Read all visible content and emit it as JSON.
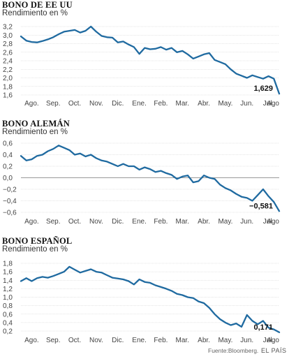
{
  "colors": {
    "line": "#1f6aa0",
    "grid": "#cccccc",
    "zero": "#999999"
  },
  "months": [
    "Ago.",
    "Sep.",
    "Oct.",
    "Nov.",
    "Dic.",
    "Ene.",
    "Feb.",
    "Mar.",
    "Abr.",
    "May.",
    "Jun.",
    "Jul.",
    "Ago"
  ],
  "footer": {
    "source": "Fuente:Bloomberg.",
    "brand": "EL PAÍS"
  },
  "chart_data": [
    {
      "type": "line",
      "title": "BONO DE EE UU",
      "ylabel": "Rendimiento en %",
      "ylim": [
        1.6,
        3.2
      ],
      "yticks": [
        "3,2",
        "3,0",
        "2,8",
        "2,6",
        "2,4",
        "2,2",
        "2,0",
        "1,8",
        "1,6"
      ],
      "end_label": "1,629",
      "grid": "horizontal",
      "series": [
        {
          "x": [
            0,
            0.25,
            0.5,
            0.75,
            1,
            1.25,
            1.5,
            1.75,
            2,
            2.25,
            2.5,
            2.75,
            3,
            3.25,
            3.5,
            3.75,
            4,
            4.25,
            4.5,
            4.75,
            5,
            5.25,
            5.5,
            5.75,
            6,
            6.25,
            6.5,
            6.75,
            7,
            7.25,
            7.5,
            7.75,
            8,
            8.25,
            8.5,
            8.75,
            9,
            9.25,
            9.5,
            9.75,
            10,
            10.25,
            10.5,
            10.75,
            11,
            11.25,
            11.5,
            11.75,
            12
          ],
          "values": [
            2.97,
            2.87,
            2.84,
            2.83,
            2.86,
            2.9,
            2.95,
            3.02,
            3.08,
            3.1,
            3.12,
            3.06,
            3.1,
            3.2,
            3.08,
            2.98,
            2.95,
            2.94,
            2.83,
            2.85,
            2.78,
            2.72,
            2.56,
            2.7,
            2.67,
            2.68,
            2.72,
            2.66,
            2.7,
            2.6,
            2.63,
            2.55,
            2.45,
            2.5,
            2.55,
            2.58,
            2.42,
            2.37,
            2.32,
            2.2,
            2.1,
            2.05,
            2.0,
            2.06,
            2.02,
            1.98,
            2.04,
            1.98,
            1.63
          ]
        }
      ]
    },
    {
      "type": "line",
      "title": "BONO ALEMÁN",
      "ylabel": "Rendimiento en %",
      "ylim": [
        -0.6,
        0.6
      ],
      "yticks": [
        "0,6",
        "0,4",
        "0,2",
        "0,0",
        "−0,2",
        "−0,4",
        "−0,6"
      ],
      "end_label": "−0,581",
      "grid": "horizontal",
      "series": [
        {
          "x": [
            0,
            0.25,
            0.5,
            0.75,
            1,
            1.25,
            1.5,
            1.75,
            2,
            2.25,
            2.5,
            2.75,
            3,
            3.25,
            3.5,
            3.75,
            4,
            4.25,
            4.5,
            4.75,
            5,
            5.25,
            5.5,
            5.75,
            6,
            6.25,
            6.5,
            6.75,
            7,
            7.25,
            7.5,
            7.75,
            8,
            8.25,
            8.5,
            8.75,
            9,
            9.25,
            9.5,
            9.75,
            10,
            10.25,
            10.5,
            10.75,
            11,
            11.25,
            11.5,
            11.75,
            12
          ],
          "values": [
            0.38,
            0.3,
            0.32,
            0.38,
            0.4,
            0.46,
            0.5,
            0.56,
            0.52,
            0.48,
            0.4,
            0.42,
            0.37,
            0.4,
            0.34,
            0.3,
            0.28,
            0.24,
            0.2,
            0.24,
            0.2,
            0.2,
            0.14,
            0.18,
            0.15,
            0.1,
            0.12,
            0.08,
            0.05,
            -0.02,
            0.02,
            0.04,
            -0.08,
            -0.06,
            0.04,
            0.0,
            -0.02,
            -0.12,
            -0.18,
            -0.22,
            -0.28,
            -0.33,
            -0.35,
            -0.4,
            -0.3,
            -0.2,
            -0.32,
            -0.42,
            -0.58
          ]
        }
      ]
    },
    {
      "type": "line",
      "title": "BONO ESPAÑOL",
      "ylabel": "Rendimiento en %",
      "ylim": [
        0.2,
        1.8
      ],
      "yticks": [
        "1,8",
        "1,6",
        "1,4",
        "1,2",
        "1,0",
        "0,8",
        "0,6",
        "0,4",
        "0,2"
      ],
      "end_label": "0,171",
      "grid": "horizontal",
      "series": [
        {
          "x": [
            0,
            0.25,
            0.5,
            0.75,
            1,
            1.25,
            1.5,
            1.75,
            2,
            2.25,
            2.5,
            2.75,
            3,
            3.25,
            3.5,
            3.75,
            4,
            4.25,
            4.5,
            4.75,
            5,
            5.25,
            5.5,
            5.75,
            6,
            6.25,
            6.5,
            6.75,
            7,
            7.25,
            7.5,
            7.75,
            8,
            8.25,
            8.5,
            8.75,
            9,
            9.25,
            9.5,
            9.75,
            10,
            10.25,
            10.5,
            10.75,
            11,
            11.25,
            11.5,
            11.75,
            12
          ],
          "values": [
            1.38,
            1.45,
            1.38,
            1.45,
            1.48,
            1.46,
            1.5,
            1.55,
            1.6,
            1.72,
            1.65,
            1.58,
            1.62,
            1.66,
            1.6,
            1.58,
            1.52,
            1.46,
            1.44,
            1.42,
            1.38,
            1.3,
            1.42,
            1.36,
            1.34,
            1.28,
            1.24,
            1.2,
            1.15,
            1.08,
            1.05,
            1.0,
            0.98,
            0.9,
            0.86,
            0.75,
            0.6,
            0.48,
            0.4,
            0.34,
            0.38,
            0.3,
            0.58,
            0.44,
            0.36,
            0.44,
            0.28,
            0.24,
            0.17
          ]
        }
      ]
    }
  ]
}
